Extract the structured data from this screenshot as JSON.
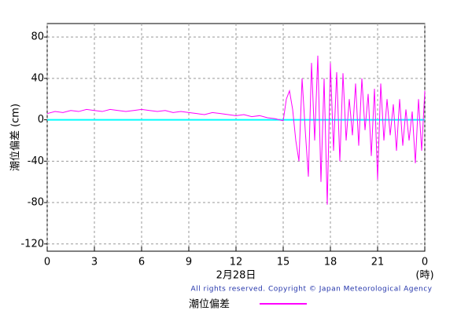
{
  "chart_data": {
    "type": "line",
    "y_label": "潮位偏差 (cm)",
    "x_label": "2月28日",
    "x_unit": "(時)",
    "copyright": "All rights reserved. Copyright © Japan Meteorological Agency",
    "xlim": [
      0,
      24
    ],
    "xticks": [
      0,
      3,
      6,
      9,
      12,
      15,
      18,
      21,
      {
        "value": 24,
        "label": "0"
      }
    ],
    "ylim": [
      -127,
      93
    ],
    "yticks": [
      -120,
      -80,
      -40,
      0,
      40,
      80
    ],
    "grid": true,
    "zero_line": {
      "value": 0,
      "color": "#00ffff"
    },
    "x": [
      0,
      0.5,
      1,
      1.5,
      2,
      2.5,
      3,
      3.5,
      4,
      4.5,
      5,
      5.5,
      6,
      6.5,
      7,
      7.5,
      8,
      8.5,
      9,
      9.5,
      10,
      10.5,
      11,
      11.5,
      12,
      12.5,
      13,
      13.5,
      14,
      14.5,
      15,
      15.2,
      15.4,
      15.6,
      15.8,
      16,
      16.2,
      16.4,
      16.6,
      16.8,
      17,
      17.2,
      17.4,
      17.6,
      17.8,
      18,
      18.2,
      18.4,
      18.6,
      18.8,
      19,
      19.2,
      19.4,
      19.6,
      19.8,
      20,
      20.2,
      20.4,
      20.6,
      20.8,
      21,
      21.2,
      21.4,
      21.6,
      21.8,
      22,
      22.2,
      22.4,
      22.6,
      22.8,
      23,
      23.2,
      23.4,
      23.6,
      23.8,
      24
    ],
    "series": [
      {
        "name": "潮位偏差",
        "color": "#ff00ff",
        "values": [
          6,
          8,
          7,
          9,
          8,
          10,
          9,
          8,
          10,
          9,
          8,
          9,
          10,
          9,
          8,
          9,
          7,
          8,
          7,
          6,
          5,
          7,
          6,
          5,
          4,
          5,
          3,
          4,
          2,
          1,
          -1,
          20,
          28,
          10,
          -20,
          -40,
          40,
          -10,
          -55,
          55,
          -20,
          62,
          -60,
          40,
          -82,
          55,
          -30,
          46,
          -40,
          45,
          -20,
          20,
          -15,
          35,
          -25,
          40,
          -10,
          25,
          -35,
          30,
          -58,
          35,
          -20,
          20,
          -15,
          15,
          -30,
          20,
          -25,
          10,
          -20,
          8,
          -42,
          20,
          -30,
          28
        ]
      }
    ]
  }
}
